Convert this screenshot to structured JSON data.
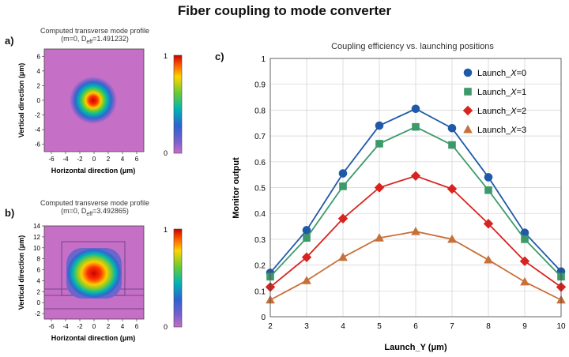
{
  "figure": {
    "title": "Fiber coupling to mode converter"
  },
  "panel_a": {
    "letter": "a)",
    "caption_line1": "Computed transverse mode profile",
    "caption_line2": "(m=0, D",
    "caption_sub": "eff",
    "caption_line2_end": "=1.491232)",
    "xlabel": "Horizontal direction (μm)",
    "ylabel": "Vertical direction (μm)"
  },
  "panel_b": {
    "letter": "b)",
    "caption_line1": "Computed transverse mode profile",
    "caption_line2": "(m=0, D",
    "caption_sub": "eff",
    "caption_line2_end": "=3.492865)",
    "xlabel": "Horizontal direction (μm)",
    "ylabel": "Vertical direction (μm)"
  },
  "panel_c": {
    "letter": "c)"
  },
  "chart_data": [
    {
      "type": "heatmap",
      "panel": "a",
      "title": "Computed transverse mode profile",
      "subtitle": "(m=0, Deff=1.491232)",
      "xlabel": "Horizontal direction (μm)",
      "ylabel": "Vertical direction (μm)",
      "xlim": [
        -7,
        7
      ],
      "ylim": [
        -7,
        7
      ],
      "x_ticks": [
        "-6",
        "-4",
        "-2",
        "0",
        "2",
        "4",
        "6"
      ],
      "y_ticks": [
        "6",
        "4",
        "2",
        "0",
        "-2",
        "-4",
        "-6"
      ],
      "colorbar_ticks": [
        "1",
        "0"
      ],
      "colorbar_range": [
        0,
        1
      ],
      "background_color": "#c66fc6"
    },
    {
      "type": "heatmap",
      "panel": "b",
      "title": "Computed transverse mode profile",
      "subtitle": "(m=0, Deff=3.492865)",
      "xlabel": "Horizontal direction (μm)",
      "ylabel": "Vertical direction (μm)",
      "xlim": [
        -7,
        7
      ],
      "ylim": [
        -3,
        14
      ],
      "x_ticks": [
        "-6",
        "-4",
        "-2",
        "0",
        "2",
        "4",
        "6"
      ],
      "y_ticks": [
        "14",
        "12",
        "10",
        "8",
        "6",
        "4",
        "2",
        "0",
        "-2"
      ],
      "colorbar_ticks": [
        "1",
        "0"
      ],
      "colorbar_range": [
        0,
        1
      ],
      "background_color": "#c66fc6"
    },
    {
      "type": "line",
      "panel": "c",
      "title": "Coupling efficiency vs. launching positions",
      "xlabel": "Launch_Y (μm)",
      "ylabel": "Monitor output",
      "xlim": [
        2,
        10
      ],
      "ylim": [
        0,
        1
      ],
      "x_ticks": [
        "2",
        "3",
        "4",
        "5",
        "6",
        "7",
        "8",
        "9",
        "10"
      ],
      "y_ticks": [
        "0",
        "0.1",
        "0.2",
        "0.3",
        "0.4",
        "0.5",
        "0.6",
        "0.7",
        "0.8",
        "0.9",
        "1"
      ],
      "grid": true,
      "legend_position": "top-right",
      "x": [
        2,
        3,
        4,
        5,
        6,
        7,
        8,
        9,
        10
      ],
      "series": [
        {
          "name": "Launch_X=0",
          "legend_prefix": "Launch_",
          "legend_var": "X",
          "legend_suffix": "=0",
          "marker": "circle",
          "color": "#1f5aa8",
          "values": [
            0.17,
            0.335,
            0.555,
            0.74,
            0.805,
            0.73,
            0.54,
            0.325,
            0.175
          ]
        },
        {
          "name": "Launch_X=1",
          "legend_prefix": "Launch_",
          "legend_var": "X",
          "legend_suffix": "=1",
          "marker": "square",
          "color": "#3c9a6a",
          "values": [
            0.155,
            0.305,
            0.505,
            0.67,
            0.735,
            0.665,
            0.49,
            0.3,
            0.155
          ]
        },
        {
          "name": "Launch_X=2",
          "legend_prefix": "Launch_",
          "legend_var": "X",
          "legend_suffix": "=2",
          "marker": "diamond",
          "color": "#d8241f",
          "values": [
            0.115,
            0.23,
            0.38,
            0.5,
            0.545,
            0.495,
            0.36,
            0.215,
            0.115
          ]
        },
        {
          "name": "Launch_X=3",
          "legend_prefix": "Launch_",
          "legend_var": "X",
          "legend_suffix": "=3",
          "marker": "triangle",
          "color": "#c8703a",
          "values": [
            0.065,
            0.14,
            0.23,
            0.305,
            0.33,
            0.3,
            0.22,
            0.135,
            0.065
          ]
        }
      ]
    }
  ]
}
